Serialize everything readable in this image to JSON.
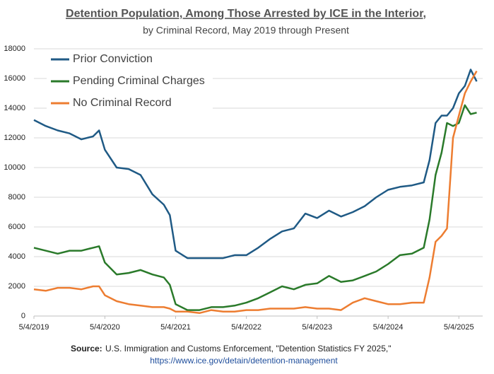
{
  "chart_data": {
    "type": "line",
    "title": "Detention Population, Among Those Arrested by ICE in the Interior,",
    "subtitle": "by Criminal Record, May 2019 through Present",
    "source_label": "Source:",
    "source_text": "U.S. Immigration and Customs Enforcement, \"Detention Statistics FY 2025,\"",
    "source_url": "https://www.ice.gov/detain/detention-management",
    "x": [
      "5/4/2019",
      "7/4/2019",
      "9/4/2019",
      "11/4/2019",
      "1/4/2020",
      "3/4/2020",
      "4/4/2020",
      "5/4/2020",
      "7/4/2020",
      "9/4/2020",
      "11/4/2020",
      "1/4/2021",
      "3/4/2021",
      "4/4/2021",
      "5/4/2021",
      "7/4/2021",
      "9/4/2021",
      "11/4/2021",
      "1/4/2022",
      "3/4/2022",
      "5/4/2022",
      "7/4/2022",
      "9/4/2022",
      "11/4/2022",
      "1/4/2023",
      "3/4/2023",
      "5/4/2023",
      "7/4/2023",
      "9/4/2023",
      "11/4/2023",
      "1/4/2024",
      "3/4/2024",
      "5/4/2024",
      "7/4/2024",
      "9/4/2024",
      "11/4/2024",
      "12/4/2024",
      "1/4/2025",
      "2/4/2025",
      "3/4/2025",
      "4/4/2025",
      "5/4/2025",
      "6/4/2025",
      "7/4/2025",
      "8/4/2025"
    ],
    "series": [
      {
        "name": "Prior Conviction",
        "color": "#1f5a85",
        "values": [
          13200,
          12800,
          12500,
          12300,
          11900,
          12100,
          12500,
          11200,
          10000,
          9900,
          9500,
          8200,
          7500,
          6800,
          4400,
          3900,
          3900,
          3900,
          3900,
          4100,
          4100,
          4600,
          5200,
          5700,
          5900,
          6900,
          6600,
          7100,
          6700,
          7000,
          7400,
          8000,
          8500,
          8700,
          8800,
          9000,
          10500,
          13000,
          13500,
          13500,
          14000,
          15000,
          15500,
          16600,
          15800
        ]
      },
      {
        "name": "Pending Criminal Charges",
        "color": "#2a7a2a",
        "values": [
          4600,
          4400,
          4200,
          4400,
          4400,
          4600,
          4700,
          3600,
          2800,
          2900,
          3100,
          2800,
          2600,
          2100,
          800,
          400,
          400,
          600,
          600,
          700,
          900,
          1200,
          1600,
          2000,
          1800,
          2100,
          2200,
          2700,
          2300,
          2400,
          2700,
          3000,
          3500,
          4100,
          4200,
          4600,
          6500,
          9500,
          11000,
          13000,
          12800,
          13000,
          14200,
          13600,
          13700
        ]
      },
      {
        "name": "No Criminal Record",
        "color": "#ed7d31",
        "values": [
          1800,
          1700,
          1900,
          1900,
          1800,
          2000,
          2000,
          1400,
          1000,
          800,
          700,
          600,
          600,
          500,
          300,
          300,
          200,
          400,
          300,
          300,
          400,
          400,
          500,
          500,
          500,
          600,
          500,
          500,
          400,
          900,
          1200,
          1000,
          800,
          800,
          900,
          900,
          2600,
          5000,
          5400,
          5900,
          12000,
          13500,
          15000,
          15800,
          16500
        ]
      }
    ],
    "xlim": [
      "5/4/2019",
      "9/4/2025"
    ],
    "xticks": [
      "5/4/2019",
      "5/4/2020",
      "5/4/2021",
      "5/4/2022",
      "5/4/2023",
      "5/4/2024",
      "5/4/2025"
    ],
    "ylim": [
      0,
      18000
    ],
    "yticks": [
      0,
      2000,
      4000,
      6000,
      8000,
      10000,
      12000,
      14000,
      16000,
      18000
    ],
    "grid": true
  }
}
